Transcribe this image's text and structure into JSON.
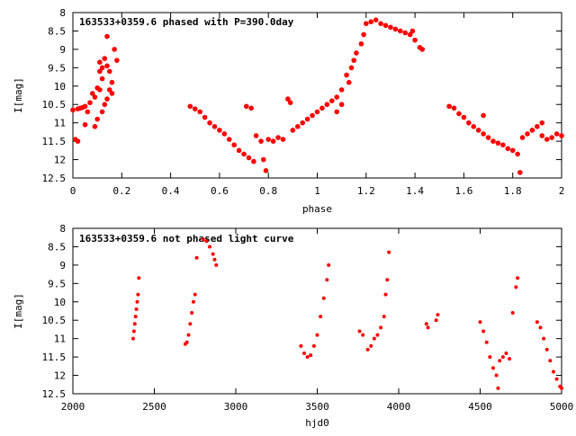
{
  "colors": {
    "points": "#ff0000",
    "axes": "#000000",
    "background": "#ffffff"
  },
  "chart_data": [
    {
      "type": "scatter",
      "title": "163533+0359.6 phased with P=390.0day",
      "xlabel": "phase",
      "ylabel": "I[mag]",
      "xlim": [
        0,
        2
      ],
      "ylim": [
        12.5,
        8
      ],
      "y_inverted": true,
      "grid": false,
      "legend": "top-left",
      "xticks": [
        "0",
        "0.2",
        "0.4",
        "0.6",
        "0.8",
        "1",
        "1.2",
        "1.4",
        "1.6",
        "1.8",
        "2"
      ],
      "yticks": [
        "8",
        "8.5",
        "9",
        "9.5",
        "10",
        "10.5",
        "11",
        "11.5",
        "12",
        "12.5"
      ],
      "points": [
        [
          0.0,
          10.65
        ],
        [
          0.01,
          11.45
        ],
        [
          0.02,
          11.5
        ],
        [
          0.02,
          10.62
        ],
        [
          0.03,
          10.6
        ],
        [
          0.04,
          10.58
        ],
        [
          0.05,
          11.05
        ],
        [
          0.05,
          10.55
        ],
        [
          0.06,
          10.7
        ],
        [
          0.07,
          10.45
        ],
        [
          0.08,
          10.2
        ],
        [
          0.09,
          10.3
        ],
        [
          0.09,
          11.1
        ],
        [
          0.1,
          10.05
        ],
        [
          0.1,
          10.9
        ],
        [
          0.11,
          10.1
        ],
        [
          0.12,
          9.8
        ],
        [
          0.12,
          10.7
        ],
        [
          0.11,
          9.6
        ],
        [
          0.11,
          9.35
        ],
        [
          0.12,
          9.5
        ],
        [
          0.13,
          10.5
        ],
        [
          0.13,
          9.25
        ],
        [
          0.14,
          10.35
        ],
        [
          0.14,
          9.45
        ],
        [
          0.14,
          8.65
        ],
        [
          0.15,
          10.1
        ],
        [
          0.15,
          9.6
        ],
        [
          0.16,
          9.9
        ],
        [
          0.17,
          9.0
        ],
        [
          0.18,
          9.3
        ],
        [
          0.16,
          10.2
        ],
        [
          0.48,
          10.55
        ],
        [
          0.5,
          10.62
        ],
        [
          0.52,
          10.7
        ],
        [
          0.54,
          10.85
        ],
        [
          0.56,
          11.0
        ],
        [
          0.58,
          11.1
        ],
        [
          0.6,
          11.2
        ],
        [
          0.62,
          11.3
        ],
        [
          0.64,
          11.45
        ],
        [
          0.66,
          11.6
        ],
        [
          0.68,
          11.75
        ],
        [
          0.7,
          11.85
        ],
        [
          0.72,
          11.95
        ],
        [
          0.74,
          12.05
        ],
        [
          0.71,
          10.55
        ],
        [
          0.73,
          10.6
        ],
        [
          0.75,
          11.35
        ],
        [
          0.77,
          11.5
        ],
        [
          0.78,
          12.0
        ],
        [
          0.79,
          12.3
        ],
        [
          0.8,
          11.45
        ],
        [
          0.82,
          11.5
        ],
        [
          0.84,
          11.4
        ],
        [
          0.86,
          11.45
        ],
        [
          0.88,
          10.35
        ],
        [
          0.89,
          10.45
        ],
        [
          0.9,
          11.2
        ],
        [
          0.92,
          11.1
        ],
        [
          0.94,
          11.0
        ],
        [
          0.96,
          10.9
        ],
        [
          0.98,
          10.8
        ],
        [
          1.0,
          10.7
        ],
        [
          1.02,
          10.6
        ],
        [
          1.04,
          10.5
        ],
        [
          1.06,
          10.4
        ],
        [
          1.08,
          10.3
        ],
        [
          1.08,
          10.7
        ],
        [
          1.1,
          10.1
        ],
        [
          1.1,
          10.5
        ],
        [
          1.12,
          9.7
        ],
        [
          1.13,
          9.9
        ],
        [
          1.14,
          9.5
        ],
        [
          1.15,
          9.3
        ],
        [
          1.16,
          9.1
        ],
        [
          1.18,
          8.85
        ],
        [
          1.19,
          8.6
        ],
        [
          1.2,
          8.3
        ],
        [
          1.22,
          8.25
        ],
        [
          1.24,
          8.2
        ],
        [
          1.26,
          8.3
        ],
        [
          1.28,
          8.35
        ],
        [
          1.3,
          8.4
        ],
        [
          1.32,
          8.45
        ],
        [
          1.34,
          8.5
        ],
        [
          1.36,
          8.55
        ],
        [
          1.38,
          8.6
        ],
        [
          1.39,
          8.5
        ],
        [
          1.4,
          8.75
        ],
        [
          1.42,
          8.95
        ],
        [
          1.43,
          9.0
        ],
        [
          1.54,
          10.55
        ],
        [
          1.56,
          10.6
        ],
        [
          1.58,
          10.75
        ],
        [
          1.6,
          10.85
        ],
        [
          1.62,
          11.0
        ],
        [
          1.64,
          11.1
        ],
        [
          1.66,
          11.2
        ],
        [
          1.68,
          11.3
        ],
        [
          1.68,
          10.8
        ],
        [
          1.7,
          11.4
        ],
        [
          1.72,
          11.5
        ],
        [
          1.74,
          11.55
        ],
        [
          1.76,
          11.6
        ],
        [
          1.78,
          11.7
        ],
        [
          1.8,
          11.75
        ],
        [
          1.82,
          11.85
        ],
        [
          1.83,
          12.35
        ],
        [
          1.84,
          11.4
        ],
        [
          1.86,
          11.3
        ],
        [
          1.88,
          11.2
        ],
        [
          1.9,
          11.1
        ],
        [
          1.92,
          11.0
        ],
        [
          1.92,
          11.35
        ],
        [
          1.94,
          11.45
        ],
        [
          1.96,
          11.4
        ],
        [
          1.98,
          11.3
        ],
        [
          2.0,
          11.35
        ]
      ]
    },
    {
      "type": "scatter",
      "title": "163533+0359.6 not phased light curve",
      "xlabel": "hjd0",
      "ylabel": "I[mag]",
      "xlim": [
        2000,
        5000
      ],
      "ylim": [
        12.5,
        8
      ],
      "y_inverted": true,
      "grid": false,
      "legend": "top-left",
      "xticks": [
        "2000",
        "2500",
        "3000",
        "3500",
        "4000",
        "4500",
        "5000"
      ],
      "yticks": [
        "8",
        "8.5",
        "9",
        "9.5",
        "10",
        "10.5",
        "11",
        "11.5",
        "12",
        "12.5"
      ],
      "points": [
        [
          2370,
          11.0
        ],
        [
          2375,
          10.8
        ],
        [
          2380,
          10.6
        ],
        [
          2385,
          10.4
        ],
        [
          2390,
          10.2
        ],
        [
          2395,
          10.0
        ],
        [
          2400,
          9.8
        ],
        [
          2405,
          9.35
        ],
        [
          2690,
          11.15
        ],
        [
          2700,
          11.1
        ],
        [
          2710,
          10.9
        ],
        [
          2720,
          10.6
        ],
        [
          2730,
          10.3
        ],
        [
          2740,
          10.0
        ],
        [
          2750,
          9.8
        ],
        [
          2760,
          8.8
        ],
        [
          2800,
          8.3
        ],
        [
          2820,
          8.35
        ],
        [
          2840,
          8.5
        ],
        [
          2860,
          8.7
        ],
        [
          2870,
          8.85
        ],
        [
          2880,
          9.0
        ],
        [
          3400,
          11.2
        ],
        [
          3420,
          11.4
        ],
        [
          3440,
          11.5
        ],
        [
          3460,
          11.45
        ],
        [
          3480,
          11.2
        ],
        [
          3500,
          10.9
        ],
        [
          3520,
          10.4
        ],
        [
          3540,
          9.9
        ],
        [
          3560,
          9.4
        ],
        [
          3570,
          9.0
        ],
        [
          3760,
          10.8
        ],
        [
          3780,
          10.9
        ],
        [
          3810,
          11.3
        ],
        [
          3830,
          11.2
        ],
        [
          3850,
          11.0
        ],
        [
          3870,
          10.9
        ],
        [
          3890,
          10.7
        ],
        [
          3910,
          10.4
        ],
        [
          3920,
          9.8
        ],
        [
          3930,
          9.4
        ],
        [
          3940,
          8.65
        ],
        [
          4170,
          10.6
        ],
        [
          4180,
          10.7
        ],
        [
          4230,
          10.5
        ],
        [
          4240,
          10.35
        ],
        [
          4500,
          10.55
        ],
        [
          4520,
          10.8
        ],
        [
          4540,
          11.1
        ],
        [
          4560,
          11.5
        ],
        [
          4580,
          11.8
        ],
        [
          4600,
          12.0
        ],
        [
          4610,
          12.35
        ],
        [
          4620,
          11.6
        ],
        [
          4640,
          11.5
        ],
        [
          4660,
          11.4
        ],
        [
          4680,
          11.55
        ],
        [
          4700,
          10.3
        ],
        [
          4720,
          9.6
        ],
        [
          4730,
          9.35
        ],
        [
          4850,
          10.55
        ],
        [
          4870,
          10.7
        ],
        [
          4890,
          11.0
        ],
        [
          4910,
          11.3
        ],
        [
          4930,
          11.6
        ],
        [
          4950,
          11.9
        ],
        [
          4970,
          12.1
        ],
        [
          4990,
          12.3
        ],
        [
          5000,
          12.35
        ]
      ]
    }
  ]
}
